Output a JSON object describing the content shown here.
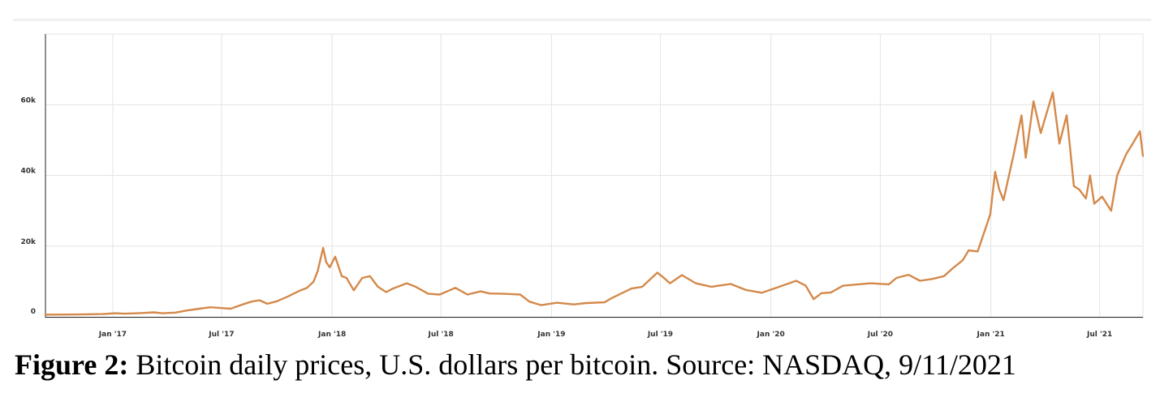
{
  "caption": {
    "label": "Figure 2:",
    "text": "Bitcoin daily prices, U.S. dollars per bitcoin. Source: NASDAQ, 9/11/2021"
  },
  "colors": {
    "line": "#d4894a",
    "grid": "#e4e4e4",
    "axis": "#222222",
    "topbar": "#f0f0f0"
  },
  "chart_data": {
    "type": "line",
    "title": "",
    "xlabel": "",
    "ylabel": "",
    "x_range": [
      "2016-09-11",
      "2021-09-11"
    ],
    "ylim": [
      0,
      80000
    ],
    "grid": true,
    "legend": "none",
    "x_ticks": [
      {
        "date": "2017-01-01",
        "label": "Jan '17"
      },
      {
        "date": "2017-07-01",
        "label": "Jul '17"
      },
      {
        "date": "2018-01-01",
        "label": "Jan '18"
      },
      {
        "date": "2018-07-01",
        "label": "Jul '18"
      },
      {
        "date": "2019-01-01",
        "label": "Jan '19"
      },
      {
        "date": "2019-07-01",
        "label": "Jul '19"
      },
      {
        "date": "2020-01-01",
        "label": "Jan '20"
      },
      {
        "date": "2020-07-01",
        "label": "Jul '20"
      },
      {
        "date": "2021-01-01",
        "label": "Jan '21"
      },
      {
        "date": "2021-07-01",
        "label": "Jul '21"
      }
    ],
    "y_ticks": [
      {
        "value": 0,
        "label": "0"
      },
      {
        "value": 20000,
        "label": "20k"
      },
      {
        "value": 40000,
        "label": "40k"
      },
      {
        "value": 60000,
        "label": "60k"
      }
    ],
    "series": [
      {
        "x": [
          "2016-09-11",
          "2016-10-15",
          "2016-11-15",
          "2016-12-15",
          "2017-01-05",
          "2017-01-20",
          "2017-02-15",
          "2017-03-10",
          "2017-03-25",
          "2017-04-15",
          "2017-05-05",
          "2017-05-25",
          "2017-06-12",
          "2017-06-30",
          "2017-07-16",
          "2017-08-05",
          "2017-08-20",
          "2017-09-02",
          "2017-09-15",
          "2017-10-01",
          "2017-10-20",
          "2017-11-08",
          "2017-11-20",
          "2017-12-01",
          "2017-12-08",
          "2017-12-17",
          "2017-12-22",
          "2017-12-28",
          "2018-01-06",
          "2018-01-17",
          "2018-01-25",
          "2018-02-06",
          "2018-02-20",
          "2018-03-05",
          "2018-03-18",
          "2018-04-01",
          "2018-04-12",
          "2018-05-05",
          "2018-05-20",
          "2018-06-10",
          "2018-06-29",
          "2018-07-25",
          "2018-08-14",
          "2018-09-05",
          "2018-09-20",
          "2018-10-15",
          "2018-11-10",
          "2018-11-25",
          "2018-12-15",
          "2019-01-10",
          "2019-02-07",
          "2019-02-28",
          "2019-03-30",
          "2019-04-10",
          "2019-05-14",
          "2019-06-01",
          "2019-06-26",
          "2019-07-05",
          "2019-07-17",
          "2019-08-06",
          "2019-08-29",
          "2019-09-24",
          "2019-10-26",
          "2019-11-20",
          "2019-12-17",
          "2020-01-15",
          "2020-02-12",
          "2020-02-28",
          "2020-03-12",
          "2020-03-25",
          "2020-04-10",
          "2020-04-30",
          "2020-05-25",
          "2020-06-15",
          "2020-07-15",
          "2020-07-28",
          "2020-08-17",
          "2020-09-05",
          "2020-09-25",
          "2020-10-15",
          "2020-10-28",
          "2020-11-15",
          "2020-11-25",
          "2020-12-10",
          "2020-12-20",
          "2020-12-31",
          "2021-01-08",
          "2021-01-15",
          "2021-01-22",
          "2021-02-08",
          "2021-02-21",
          "2021-02-28",
          "2021-03-13",
          "2021-03-25",
          "2021-04-14",
          "2021-04-25",
          "2021-05-07",
          "2021-05-12",
          "2021-05-19",
          "2021-05-28",
          "2021-06-08",
          "2021-06-15",
          "2021-06-22",
          "2021-07-05",
          "2021-07-20",
          "2021-07-30",
          "2021-08-14",
          "2021-08-25",
          "2021-09-06",
          "2021-09-11"
        ],
        "values": [
          610,
          640,
          720,
          780,
          1000,
          900,
          1050,
          1250,
          1000,
          1200,
          1800,
          2300,
          2700,
          2500,
          2300,
          3500,
          4300,
          4700,
          3700,
          4400,
          5800,
          7400,
          8200,
          9900,
          13000,
          19500,
          15500,
          14000,
          17000,
          11500,
          11000,
          7500,
          11000,
          11500,
          8500,
          7000,
          8000,
          9500,
          8500,
          6500,
          6300,
          8200,
          6300,
          7200,
          6600,
          6500,
          6300,
          4300,
          3300,
          4000,
          3500,
          3900,
          4100,
          5200,
          8000,
          8500,
          12500,
          11300,
          9500,
          11800,
          9500,
          8500,
          9300,
          7600,
          6800,
          8500,
          10200,
          8800,
          5000,
          6700,
          6900,
          8800,
          9200,
          9500,
          9200,
          11000,
          11900,
          10200,
          10700,
          11500,
          13500,
          16000,
          18800,
          18500,
          23500,
          29000,
          41000,
          36000,
          33000,
          46000,
          57000,
          45000,
          61000,
          52000,
          63500,
          49000,
          57000,
          49000,
          37000,
          36000,
          33500,
          40000,
          32000,
          34000,
          30000,
          40000,
          46000,
          49000,
          52500,
          45500
        ]
      }
    ]
  }
}
